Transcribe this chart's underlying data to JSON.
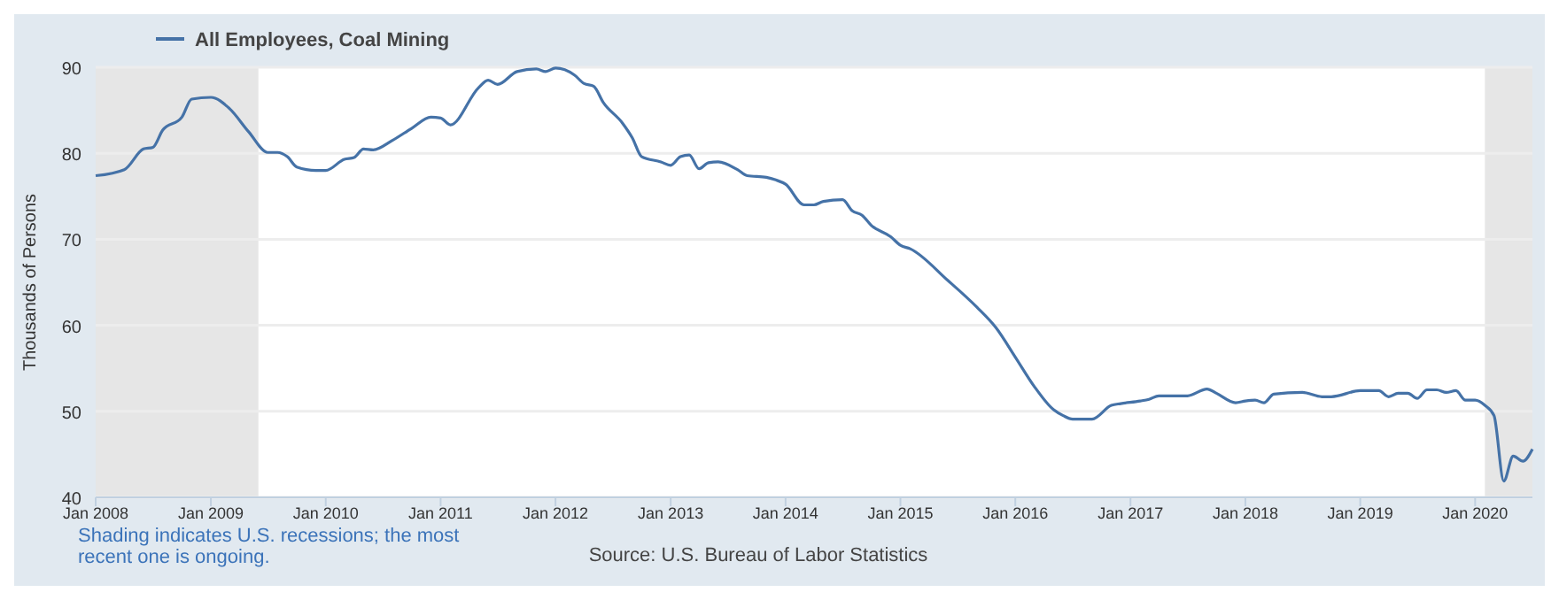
{
  "chart_data": {
    "type": "line",
    "ylabel": "Thousands of Persons",
    "legend": "top left",
    "grid": "y",
    "xlim": [
      "2008-01",
      "2020-07"
    ],
    "ylim": [
      40,
      90
    ],
    "yticks": [
      40,
      50,
      60,
      70,
      80,
      90
    ],
    "xticks": [
      {
        "value": "2008-01",
        "label": "Jan 2008"
      },
      {
        "value": "2009-01",
        "label": "Jan 2009"
      },
      {
        "value": "2010-01",
        "label": "Jan 2010"
      },
      {
        "value": "2011-01",
        "label": "Jan 2011"
      },
      {
        "value": "2012-01",
        "label": "Jan 2012"
      },
      {
        "value": "2013-01",
        "label": "Jan 2013"
      },
      {
        "value": "2014-01",
        "label": "Jan 2014"
      },
      {
        "value": "2015-01",
        "label": "Jan 2015"
      },
      {
        "value": "2016-01",
        "label": "Jan 2016"
      },
      {
        "value": "2017-01",
        "label": "Jan 2017"
      },
      {
        "value": "2018-01",
        "label": "Jan 2018"
      },
      {
        "value": "2019-01",
        "label": "Jan 2019"
      },
      {
        "value": "2020-01",
        "label": "Jan 2020"
      }
    ],
    "bands": [
      {
        "axis": "x",
        "from": "2008-01",
        "to": "2009-06",
        "color": "#e6e6e6"
      },
      {
        "axis": "x",
        "from": "2020-02",
        "to": "2020-07",
        "color": "#e6e6e6"
      }
    ],
    "annotations": [
      "Shading indicates U.S. recessions; the most recent one is ongoing.",
      "Source: U.S. Bureau of Labor Statistics"
    ],
    "series": [
      {
        "name": "All Employees, Coal Mining",
        "color": "#4572a7",
        "x": [
          "2008-01",
          "2008-04",
          "2008-06",
          "2008-07",
          "2008-08",
          "2008-10",
          "2008-11",
          "2009-01",
          "2009-03",
          "2009-05",
          "2009-07",
          "2009-08",
          "2009-09",
          "2009-10",
          "2009-12",
          "2010-01",
          "2010-03",
          "2010-04",
          "2010-05",
          "2010-06",
          "2010-08",
          "2010-10",
          "2010-12",
          "2011-01",
          "2011-02",
          "2011-05",
          "2011-06",
          "2011-07",
          "2011-09",
          "2011-11",
          "2011-12",
          "2012-01",
          "2012-03",
          "2012-04",
          "2012-05",
          "2012-06",
          "2012-08",
          "2012-09",
          "2012-10",
          "2012-12",
          "2013-01",
          "2013-02",
          "2013-03",
          "2013-04",
          "2013-05",
          "2013-06",
          "2013-08",
          "2013-09",
          "2013-11",
          "2013-12",
          "2014-01",
          "2014-03",
          "2014-04",
          "2014-05",
          "2014-07",
          "2014-08",
          "2014-09",
          "2014-10",
          "2014-12",
          "2015-01",
          "2015-02",
          "2015-06",
          "2015-09",
          "2015-11",
          "2016-01",
          "2016-03",
          "2016-05",
          "2016-06",
          "2016-07",
          "2016-09",
          "2016-11",
          "2016-12",
          "2017-02",
          "2017-03",
          "2017-04",
          "2017-07",
          "2017-09",
          "2017-10",
          "2017-12",
          "2018-01",
          "2018-02",
          "2018-03",
          "2018-04",
          "2018-07",
          "2018-09",
          "2018-10",
          "2019-01",
          "2019-03",
          "2019-04",
          "2019-05",
          "2019-06",
          "2019-07",
          "2019-08",
          "2019-09",
          "2019-10",
          "2019-11",
          "2019-12",
          "2020-01",
          "2020-02",
          "2020-03",
          "2020-04",
          "2020-05",
          "2020-06",
          "2020-07"
        ],
        "values": [
          77.4,
          78.1,
          80.5,
          80.7,
          82.7,
          84.2,
          86.3,
          86.5,
          85.2,
          82.5,
          80.1,
          80.1,
          79.6,
          78.4,
          78.0,
          78.0,
          79.3,
          79.5,
          80.5,
          80.4,
          81.5,
          82.9,
          84.2,
          84.1,
          83.3,
          87.6,
          88.5,
          88.0,
          89.5,
          89.8,
          89.5,
          89.9,
          89.1,
          88.1,
          87.8,
          85.9,
          83.5,
          81.8,
          79.6,
          79.0,
          78.6,
          79.6,
          79.8,
          78.2,
          78.9,
          79.0,
          78.1,
          77.4,
          77.2,
          76.9,
          76.4,
          74.0,
          74.0,
          74.4,
          74.6,
          73.3,
          72.8,
          71.6,
          70.3,
          69.3,
          68.9,
          65.2,
          62.1,
          59.7,
          56.3,
          52.9,
          50.2,
          49.5,
          49.1,
          49.1,
          50.7,
          50.9,
          51.2,
          51.4,
          51.8,
          51.8,
          52.6,
          52.1,
          51.0,
          51.2,
          51.3,
          51.0,
          52.0,
          52.2,
          51.7,
          51.7,
          52.4,
          52.4,
          51.7,
          52.1,
          52.1,
          51.5,
          52.5,
          52.5,
          52.2,
          52.4,
          51.3,
          51.3,
          50.7,
          49.5,
          41.9,
          44.8,
          44.2,
          45.6
        ]
      }
    ]
  }
}
